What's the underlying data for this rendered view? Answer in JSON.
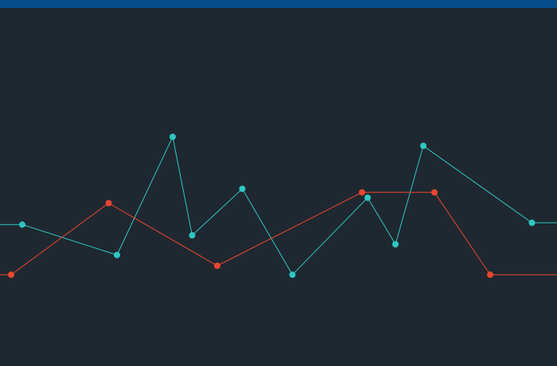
{
  "theme": {
    "background": "#1f2830",
    "top_bar_color": "#074f8c"
  },
  "chart_data": {
    "type": "line",
    "grid": false,
    "legend": "none",
    "ylim": [
      0,
      100
    ],
    "x_domain": [
      0,
      100
    ],
    "series": [
      {
        "color": "#2fc6c2",
        "points": [
          [
            0,
            39.5
          ],
          [
            4,
            39.5
          ],
          [
            21,
            31
          ],
          [
            31,
            64
          ],
          [
            34.5,
            36.5
          ],
          [
            43.5,
            49.5
          ],
          [
            52.5,
            25.5
          ],
          [
            66,
            47
          ],
          [
            71,
            34
          ],
          [
            76,
            61.5
          ],
          [
            95.5,
            40
          ],
          [
            100,
            40
          ]
        ],
        "markers": [
          false,
          true,
          true,
          true,
          true,
          true,
          true,
          true,
          true,
          true,
          true,
          false
        ]
      },
      {
        "color": "#e94630",
        "points": [
          [
            0,
            25.5
          ],
          [
            2,
            25.5
          ],
          [
            19.5,
            45.5
          ],
          [
            39,
            28
          ],
          [
            65,
            48.5
          ],
          [
            78,
            48.5
          ],
          [
            88,
            25.5
          ],
          [
            100,
            25.5
          ]
        ],
        "markers": [
          false,
          true,
          true,
          true,
          true,
          true,
          true,
          false
        ]
      }
    ]
  }
}
